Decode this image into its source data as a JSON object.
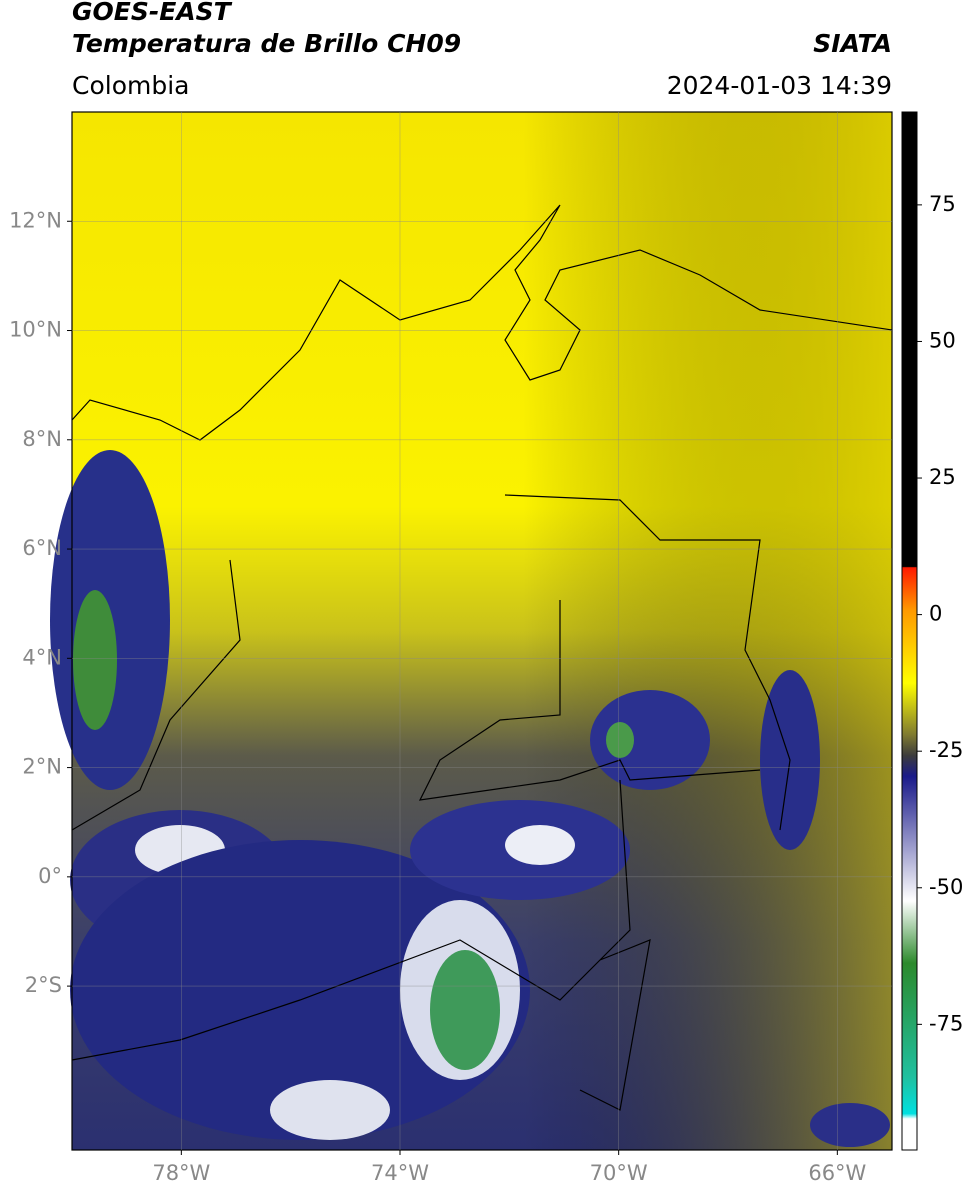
{
  "header": {
    "title": "GOES-EAST",
    "subtitle": "Temperatura de Brillo CH09",
    "region": "Colombia",
    "source": "SIATA",
    "timestamp": "2024-01-03 14:39"
  },
  "map": {
    "xlim": [
      -80,
      -65
    ],
    "ylim": [
      -5,
      14
    ],
    "xticks": [
      {
        "value": -78,
        "label": "78°W"
      },
      {
        "value": -74,
        "label": "74°W"
      },
      {
        "value": -70,
        "label": "70°W"
      },
      {
        "value": -66,
        "label": "66°W"
      }
    ],
    "yticks": [
      {
        "value": 12,
        "label": "12°N"
      },
      {
        "value": 10,
        "label": "10°N"
      },
      {
        "value": 8,
        "label": "8°N"
      },
      {
        "value": 6,
        "label": "6°N"
      },
      {
        "value": 4,
        "label": "4°N"
      },
      {
        "value": 2,
        "label": "2°N"
      },
      {
        "value": 0,
        "label": "0°"
      },
      {
        "value": -2,
        "label": "2°S"
      }
    ]
  },
  "colorbar": {
    "lim": [
      -98,
      92
    ],
    "ticks": [
      75,
      50,
      25,
      0,
      -25,
      -50,
      -75
    ]
  }
}
